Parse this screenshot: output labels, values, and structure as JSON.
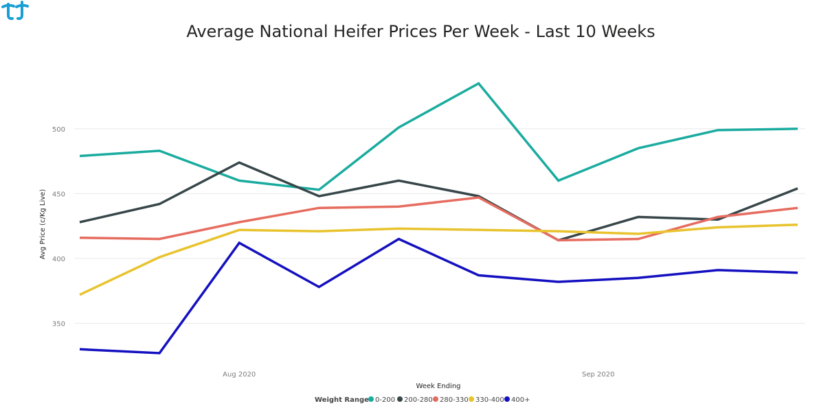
{
  "chart_data": {
    "type": "line",
    "title": "Average National Heifer Prices Per Week - Last 10 Weeks",
    "xlabel": "Week Ending",
    "ylabel": "Avg Price (c/Kg Live)",
    "x_tick_labels": [
      {
        "label": "Aug 2020",
        "index": 2
      },
      {
        "label": "Sep 2020",
        "index": 6.5
      }
    ],
    "ylim": [
      318,
      548
    ],
    "yticks": [
      350,
      400,
      450,
      500
    ],
    "grid": true,
    "legend_title": "Weight Range",
    "legend_position": "bottom",
    "x": [
      0,
      1,
      2,
      3,
      4,
      5,
      6,
      7,
      8,
      9
    ],
    "series": [
      {
        "name": "0-200",
        "color": "#1aab9f",
        "values": [
          479,
          483,
          460,
          453,
          501,
          535,
          460,
          485,
          499,
          500
        ]
      },
      {
        "name": "200-280",
        "color": "#374649",
        "values": [
          428,
          442,
          474,
          448,
          460,
          448,
          414,
          432,
          430,
          454
        ]
      },
      {
        "name": "280-330",
        "color": "#e66c5f",
        "values": [
          416,
          415,
          428,
          439,
          440,
          447,
          414,
          415,
          432,
          439
        ]
      },
      {
        "name": "330-400",
        "color": "#e8c32e",
        "values": [
          372,
          401,
          422,
          421,
          423,
          422,
          421,
          419,
          424,
          426
        ]
      },
      {
        "name": "400+",
        "color": "#1410c0",
        "values": [
          330,
          327,
          412,
          378,
          415,
          387,
          382,
          385,
          391,
          389
        ]
      }
    ]
  }
}
